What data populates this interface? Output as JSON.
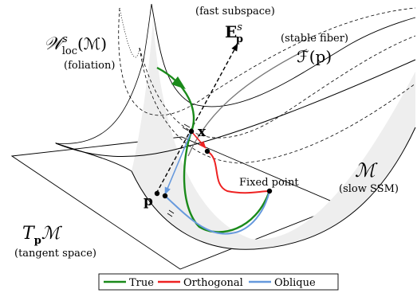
{
  "labels": {
    "fast_subspace": "(fast subspace)",
    "E_base": "E",
    "E_sup": "s",
    "E_sub": "p",
    "stable_fiber": "(stable fiber)",
    "F_symbol": "ℱ(p)",
    "W_base": "𝒲",
    "W_sup": "s",
    "W_sub": "loc",
    "W_arg": "(ℳ)",
    "foliation": "(foliation)",
    "x_point": "x",
    "fixed_point": "Fixed point",
    "M_symbol": "ℳ",
    "slow_ssm": "(slow SSM)",
    "p_point": "p",
    "T_base": "T",
    "T_sub": "p",
    "T_M": "ℳ",
    "tangent_space": "(tangent space)"
  },
  "legend": {
    "items": [
      {
        "label": "True",
        "color": "#1a8a1a"
      },
      {
        "label": "Orthogonal",
        "color": "#ee2222"
      },
      {
        "label": "Oblique",
        "color": "#6699dd"
      }
    ]
  },
  "colors": {
    "true_curve": "#1a8a1a",
    "orthogonal_curve": "#ee2222",
    "oblique_curve": "#6699dd",
    "surface_fill": "#eeeeee"
  }
}
